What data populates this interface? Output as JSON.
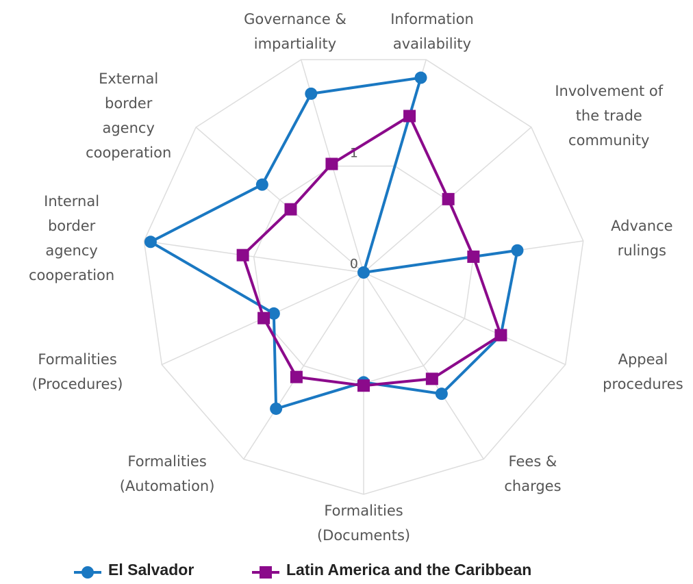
{
  "chart_data": {
    "type": "radar",
    "categories": [
      "Information availability",
      "Involvement of the trade community",
      "Advance rulings",
      "Appeal procedures",
      "Fees & charges",
      "Formalities (Documents)",
      "Formalities (Automation)",
      "Formalities (Procedures)",
      "Internal border agency cooperation",
      "External border agency cooperation",
      "Governance & impartiality"
    ],
    "series": [
      {
        "name": "El Salvador",
        "color": "#1a78c2",
        "marker": "circle",
        "values": [
          1.83,
          0,
          1.4,
          1.36,
          1.3,
          0.99,
          1.46,
          0.89,
          1.94,
          1.21,
          1.68
        ]
      },
      {
        "name": "Latin America and the Caribbean",
        "color": "#8b0a8b",
        "marker": "square",
        "values": [
          1.47,
          1.01,
          1.0,
          1.36,
          1.14,
          1.02,
          1.12,
          0.99,
          1.1,
          0.87,
          1.02
        ]
      }
    ],
    "ylim": [
      0,
      2
    ],
    "yticks": [
      0,
      1
    ],
    "grid": true,
    "legend": "bottom"
  }
}
